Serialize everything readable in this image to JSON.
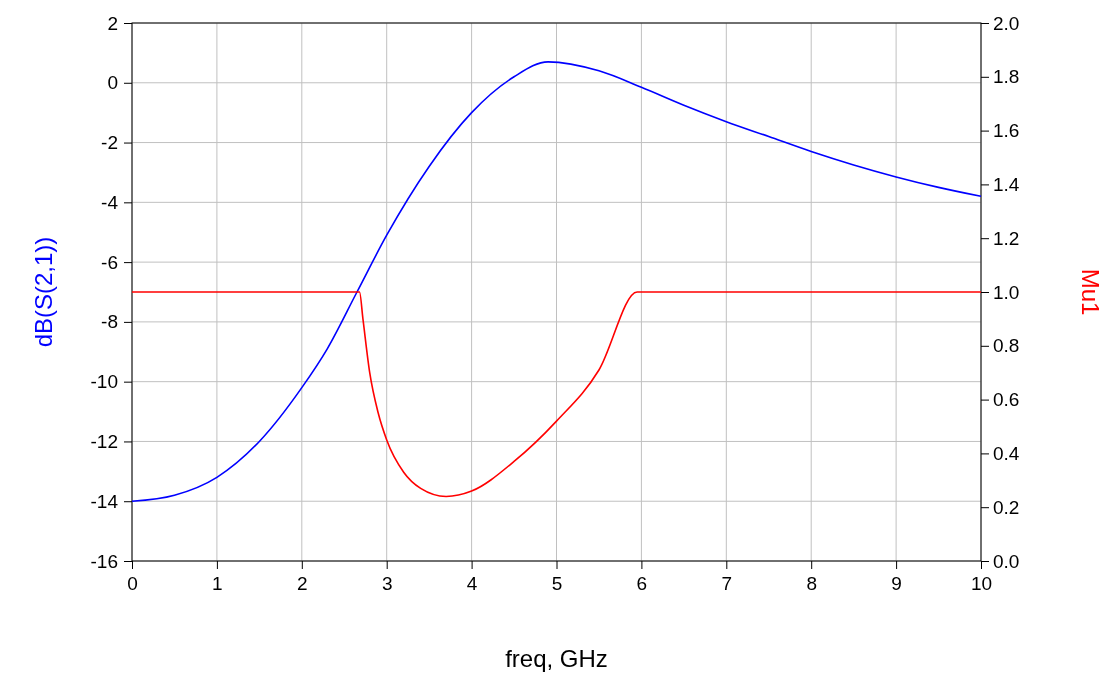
{
  "chart_data": {
    "type": "line",
    "xlabel": "freq, GHz",
    "ylabel": "dB(S(2,1))",
    "y2label": "Mu1",
    "xlim": [
      0,
      10
    ],
    "xticks": [
      0,
      1,
      2,
      3,
      4,
      5,
      6,
      7,
      8,
      9,
      10
    ],
    "ylim": [
      -16,
      2
    ],
    "yticks": [
      -16,
      -14,
      -12,
      -10,
      -8,
      -6,
      -4,
      -2,
      0,
      2
    ],
    "y2lim": [
      0,
      2
    ],
    "y2ticks": [
      {
        "value": 0,
        "label": "0.0"
      },
      {
        "value": 0.2,
        "label": "0.2"
      },
      {
        "value": 0.4,
        "label": "0.4"
      },
      {
        "value": 0.6,
        "label": "0.6"
      },
      {
        "value": 0.8,
        "label": "0.8"
      },
      {
        "value": 1,
        "label": "1.0"
      },
      {
        "value": 1.2,
        "label": "1.2"
      },
      {
        "value": 1.4,
        "label": "1.4"
      },
      {
        "value": 1.6,
        "label": "1.6"
      },
      {
        "value": 1.8,
        "label": "1.8"
      },
      {
        "value": 2,
        "label": "2.0"
      }
    ],
    "grid": true,
    "marker": "none",
    "line_style": "solid",
    "series": [
      {
        "color": "#0000ff",
        "x": [
          0,
          0.5,
          1,
          1.5,
          2,
          2.3,
          2.65,
          3,
          3.5,
          4,
          4.5,
          4.9,
          5.5,
          6,
          6.5,
          7,
          7.5,
          8,
          8.5,
          9,
          9.5,
          10
        ],
        "values": [
          -14,
          -13.8,
          -13.2,
          -12,
          -10.2,
          -8.9,
          -7,
          -5.1,
          -2.8,
          -1,
          0.2,
          0.7,
          0.4,
          -0.15,
          -0.75,
          -1.3,
          -1.8,
          -2.3,
          -2.75,
          -3.15,
          -3.5,
          -3.8
        ]
      },
      {
        "color": "#ff0000",
        "axis": "y2",
        "x": [
          0,
          2.68,
          2.72,
          2.8,
          2.9,
          3,
          3.2,
          3.4,
          3.7,
          4,
          4.5,
          5,
          5.5,
          5.95,
          10
        ],
        "values": [
          1,
          1,
          0.9,
          0.7,
          0.55,
          0.45,
          0.33,
          0.27,
          0.24,
          0.26,
          0.37,
          0.52,
          0.71,
          1,
          1
        ]
      }
    ]
  }
}
